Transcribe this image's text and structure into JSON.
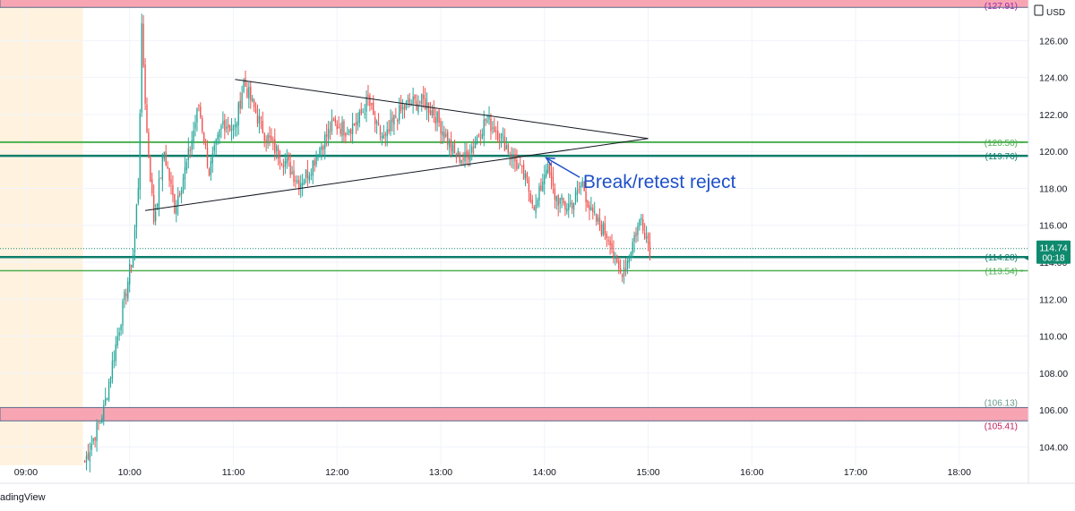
{
  "header": {
    "currency": "USD"
  },
  "footer": {
    "brand": "adingView"
  },
  "chart_data": {
    "type": "candlestick",
    "ylim": [
      103.0,
      128.2
    ],
    "x_range": [
      "08:45",
      "18:40"
    ],
    "y_ticks": [
      "104.00",
      "106.00",
      "108.00",
      "110.00",
      "112.00",
      "114.00",
      "116.00",
      "118.00",
      "120.00",
      "122.00",
      "124.00",
      "126.00"
    ],
    "x_ticks": [
      "09:00",
      "10:00",
      "11:00",
      "12:00",
      "13:00",
      "14:00",
      "15:00",
      "16:00",
      "17:00",
      "18:00"
    ],
    "premarket_shading": {
      "from": "08:45",
      "to": "09:33",
      "color": "#fff3e0"
    },
    "zones": [
      {
        "from": 127.8,
        "to": 128.4,
        "fill": "#f8a5b3",
        "border": "#5b6a8a"
      },
      {
        "from": 105.41,
        "to": 106.13,
        "fill": "#f8a5b3",
        "border": "#5b6a8a"
      }
    ],
    "horizontal_levels": [
      {
        "value": 127.91,
        "label": "(127.91)",
        "color": "#9c27b0",
        "show_line": false
      },
      {
        "value": 120.5,
        "label": "(120.50)",
        "color": "#4caf50",
        "show_line": true,
        "width": 2
      },
      {
        "value": 119.76,
        "label": "(119.76)",
        "color": "#0f7d6b",
        "show_line": true,
        "width": 2.5
      },
      {
        "value": 114.28,
        "label": "(114.28)",
        "color": "#0f7d6b",
        "show_line": true,
        "width": 2.5
      },
      {
        "value": 113.54,
        "label": "(113.54)",
        "color": "#4caf50",
        "show_line": true,
        "width": 1.5
      },
      {
        "value": 106.13,
        "label": "(106.13)",
        "color": "#6a9a8e",
        "show_line": false
      },
      {
        "value": 105.41,
        "label": "(105.41)",
        "color": "#c2185b",
        "show_line": false
      }
    ],
    "current_price": {
      "value": 114.74,
      "label": "114.74",
      "countdown": "00:18",
      "color": "#0f8a6e"
    },
    "triangle": {
      "upper": [
        [
          "11:01",
          123.9
        ],
        [
          "15:00",
          120.7
        ]
      ],
      "lower": [
        [
          "10:09",
          116.8
        ],
        [
          "15:00",
          120.7
        ]
      ]
    },
    "annotation": {
      "text": "Break/retest reject",
      "color": "#1e50c8",
      "text_at": [
        "14:12",
        118.4
      ],
      "arrow_from": [
        "14:10",
        118.6
      ],
      "arrow_to": [
        "14:01",
        119.65
      ]
    },
    "candle_colors": {
      "up": "#26a69a",
      "down": "#ef5350"
    },
    "price_path": [
      [
        "09:34",
        103.2
      ],
      [
        "09:45",
        106.0
      ],
      [
        "09:55",
        111.0
      ],
      [
        "10:02",
        114.5
      ],
      [
        "10:05",
        118.2
      ],
      [
        "10:07",
        126.5
      ],
      [
        "10:10",
        121.0
      ],
      [
        "10:14",
        116.3
      ],
      [
        "10:20",
        120.0
      ],
      [
        "10:26",
        117.0
      ],
      [
        "10:33",
        119.3
      ],
      [
        "10:40",
        122.5
      ],
      [
        "10:46",
        118.9
      ],
      [
        "10:54",
        121.6
      ],
      [
        "11:01",
        121.2
      ],
      [
        "11:06",
        123.8
      ],
      [
        "11:12",
        122.3
      ],
      [
        "11:18",
        121.0
      ],
      [
        "11:25",
        120.0
      ],
      [
        "11:32",
        119.2
      ],
      [
        "11:38",
        118.3
      ],
      [
        "11:44",
        119.0
      ],
      [
        "11:50",
        120.2
      ],
      [
        "11:58",
        121.5
      ],
      [
        "12:05",
        121.2
      ],
      [
        "12:12",
        121.6
      ],
      [
        "12:18",
        122.8
      ],
      [
        "12:23",
        121.2
      ],
      [
        "12:28",
        120.6
      ],
      [
        "12:34",
        121.9
      ],
      [
        "12:42",
        122.6
      ],
      [
        "12:50",
        122.7
      ],
      [
        "12:56",
        122.1
      ],
      [
        "13:02",
        121.0
      ],
      [
        "13:08",
        119.8
      ],
      [
        "13:14",
        119.6
      ],
      [
        "13:20",
        120.6
      ],
      [
        "13:26",
        121.7
      ],
      [
        "13:32",
        121.2
      ],
      [
        "13:38",
        120.3
      ],
      [
        "13:44",
        119.3
      ],
      [
        "13:49",
        118.4
      ],
      [
        "13:55",
        116.9
      ],
      [
        "14:01",
        119.3
      ],
      [
        "14:06",
        117.6
      ],
      [
        "14:12",
        117.0
      ],
      [
        "14:17",
        117.3
      ],
      [
        "14:22",
        118.3
      ],
      [
        "14:27",
        116.6
      ],
      [
        "14:32",
        116.0
      ],
      [
        "14:38",
        115.3
      ],
      [
        "14:41",
        113.9
      ],
      [
        "14:44",
        113.4
      ],
      [
        "14:48",
        114.1
      ],
      [
        "14:52",
        115.4
      ],
      [
        "14:56",
        116.4
      ],
      [
        "14:59",
        115.4
      ],
      [
        "15:01",
        114.7
      ]
    ]
  }
}
